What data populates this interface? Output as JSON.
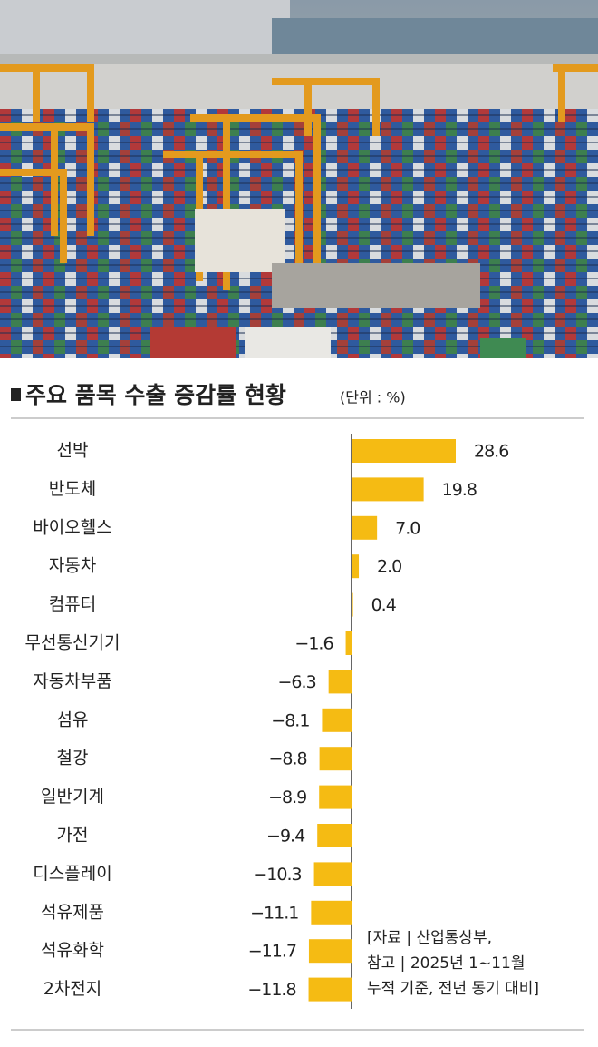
{
  "chart_data": {
    "type": "hbar",
    "title": "주요 품목 수출 증감률 현황",
    "unit_label": "(단위 : %)",
    "categories": [
      "선박",
      "반도체",
      "바이오헬스",
      "자동차",
      "컴퓨터",
      "무선통신기기",
      "자동차부품",
      "섬유",
      "철강",
      "일반기계",
      "가전",
      "디스플레이",
      "석유제품",
      "석유화학",
      "2차전지"
    ],
    "values": [
      28.6,
      19.8,
      7.0,
      2.0,
      0.4,
      -1.6,
      -6.3,
      -8.1,
      -8.8,
      -8.9,
      -9.4,
      -10.3,
      -11.1,
      -11.7,
      -11.8
    ],
    "value_labels": [
      "28.6",
      "19.8",
      "7.0",
      "2.0",
      "0.4",
      "−1.6",
      "−6.3",
      "−8.1",
      "−8.8",
      "−8.9",
      "−9.4",
      "−10.3",
      "−11.1",
      "−11.7",
      "−11.8"
    ],
    "color": "#f5bb13",
    "annotations": [
      "[자료 | 산업통상부,",
      "참고 | 2025년 1~11월",
      "누적 기준, 전년 동기 대비]"
    ]
  }
}
